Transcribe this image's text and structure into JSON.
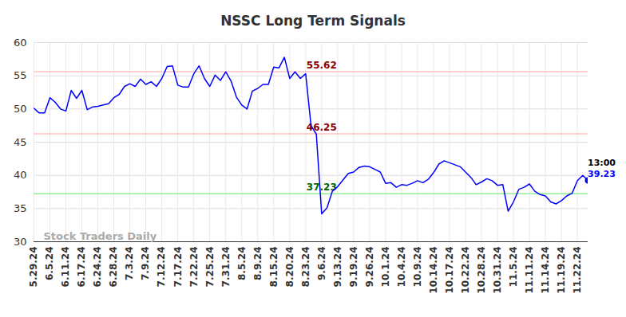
{
  "chart_data": {
    "type": "line",
    "title": "NSSC Long Term Signals",
    "categories": [
      "5.29.24",
      null,
      null,
      "6.5.24",
      null,
      null,
      "6.11.24",
      null,
      null,
      "6.17.24",
      null,
      null,
      "6.24.24",
      null,
      null,
      "6.28.24",
      null,
      null,
      "7.3.24",
      null,
      null,
      "7.9.24",
      null,
      null,
      "7.12.24",
      null,
      null,
      "7.17.24",
      null,
      null,
      "7.22.24",
      null,
      null,
      "7.25.24",
      null,
      null,
      "7.31.24",
      null,
      null,
      "8.5.24",
      null,
      null,
      "8.9.24",
      null,
      null,
      "8.15.24",
      null,
      null,
      "8.20.24",
      null,
      null,
      "8.23.24",
      null,
      null,
      "9.6.24",
      null,
      null,
      "9.13.24",
      null,
      null,
      "9.19.24",
      null,
      null,
      "9.26.24",
      null,
      null,
      "10.1.24",
      null,
      null,
      "10.4.24",
      null,
      null,
      "10.9.24",
      null,
      null,
      "10.14.24",
      null,
      null,
      "10.17.24",
      null,
      null,
      "10.22.24",
      null,
      null,
      "10.28.24",
      null,
      null,
      "10.31.24",
      null,
      null,
      "11.5.24",
      null,
      null,
      "11.11.24",
      null,
      null,
      "11.14.24",
      null,
      null,
      "11.19.24",
      null,
      null,
      "11.22.24",
      null,
      null
    ],
    "values": [
      50.1,
      49.4,
      49.4,
      51.7,
      51.0,
      50.0,
      49.7,
      52.8,
      51.6,
      52.8,
      49.9,
      50.3,
      50.4,
      50.6,
      50.8,
      51.7,
      52.2,
      53.4,
      53.8,
      53.4,
      54.5,
      53.7,
      54.1,
      53.4,
      54.6,
      56.4,
      56.5,
      53.6,
      53.3,
      53.3,
      55.3,
      56.5,
      54.6,
      53.4,
      55.1,
      54.3,
      55.6,
      54.2,
      51.8,
      50.6,
      50.0,
      52.7,
      53.1,
      53.7,
      53.7,
      56.3,
      56.2,
      57.8,
      54.6,
      55.6,
      54.6,
      55.3,
      47.5,
      46.2,
      34.2,
      35.1,
      37.6,
      38.3,
      39.3,
      40.3,
      40.5,
      41.2,
      41.4,
      41.3,
      40.9,
      40.5,
      38.8,
      38.9,
      38.2,
      38.6,
      38.5,
      38.8,
      39.2,
      38.9,
      39.4,
      40.4,
      41.7,
      42.2,
      41.9,
      41.6,
      41.3,
      40.5,
      39.7,
      38.6,
      39.0,
      39.5,
      39.2,
      38.5,
      38.6,
      34.6,
      36.0,
      37.9,
      38.2,
      38.7,
      37.6,
      37.1,
      36.9,
      36.0,
      35.7,
      36.2,
      36.9,
      37.3,
      39.2,
      40.0,
      39.23
    ],
    "color": "#0000ff",
    "ylim": [
      30,
      60
    ],
    "yticks": [
      30,
      35,
      40,
      45,
      50,
      55,
      60
    ],
    "grid": true,
    "reference_lines": [
      {
        "value": 55.62,
        "color": "#ffc0c0",
        "label_color": "#8b0000"
      },
      {
        "value": 46.25,
        "color": "#ffc0c0",
        "label_color": "#8b0000"
      },
      {
        "value": 37.23,
        "color": "#90ee90",
        "label_color": "#006400"
      }
    ],
    "last_label": "13:00",
    "watermark": "Stock Traders Daily"
  }
}
